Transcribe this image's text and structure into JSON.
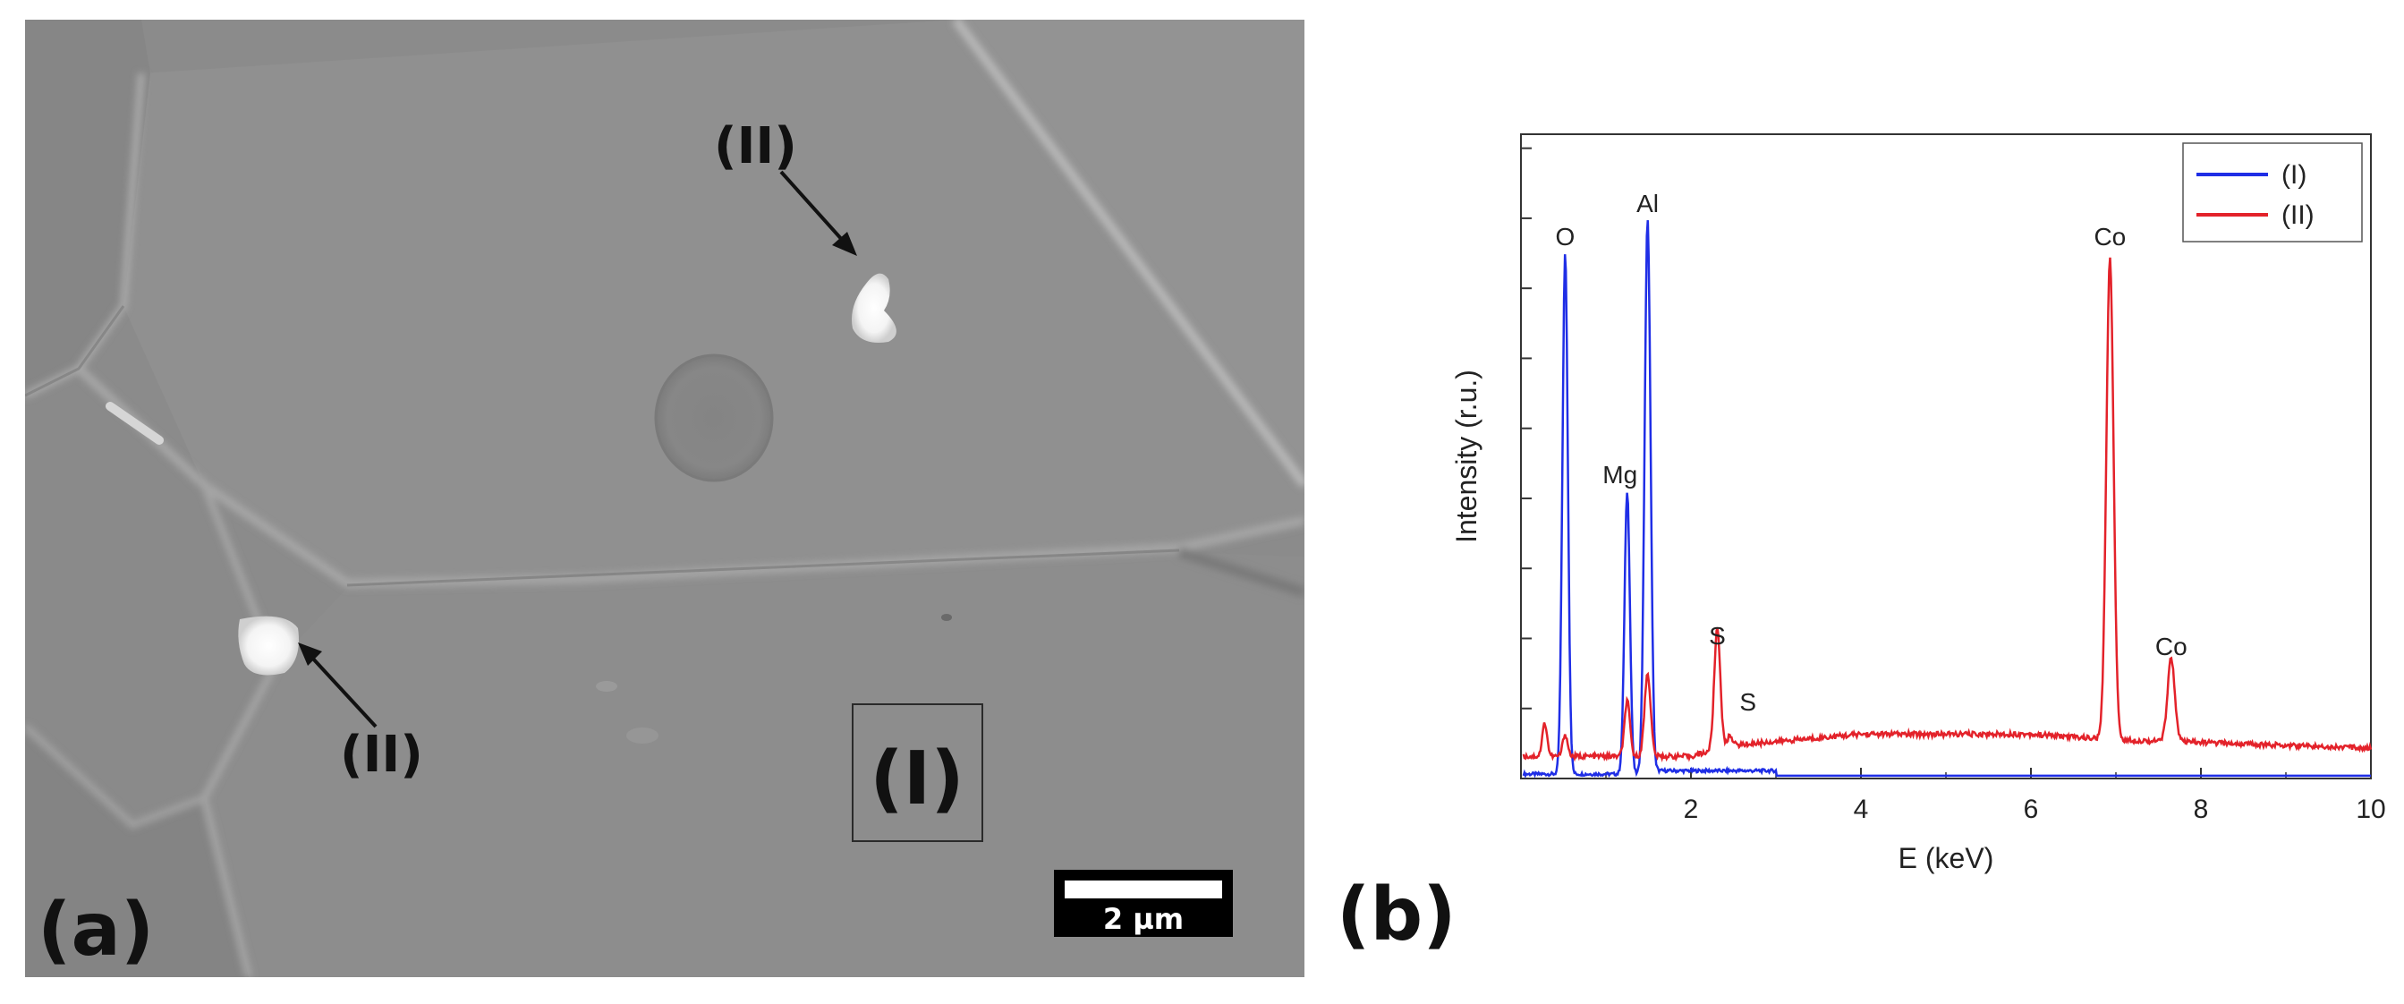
{
  "figure": {
    "panel_a": {
      "label": "(a)",
      "marker_region": "(I)",
      "particle_labels": [
        "(II)",
        "(II)"
      ],
      "scale_bar_text": "2 µm"
    },
    "panel_b": {
      "label": "(b)"
    }
  },
  "colors": {
    "series_I": "#1f2ee6",
    "series_II": "#e3222a"
  },
  "chart_data": {
    "type": "line",
    "title": "",
    "xlabel": "E (keV)",
    "ylabel": "Intensity (r.u.)",
    "xlim": [
      0,
      10
    ],
    "ylim": [
      0,
      100
    ],
    "xticks": [
      2,
      4,
      6,
      8,
      10
    ],
    "yticks_labeled": false,
    "grid": false,
    "legend": {
      "position": "top-right",
      "entries": [
        "(I)",
        "(II)"
      ]
    },
    "series": [
      {
        "name": "(I)",
        "color": "#1f2ee6",
        "peaks": [
          {
            "label": "O",
            "energy": 0.52,
            "height": 94,
            "width": 0.045
          },
          {
            "label": "Mg",
            "energy": 1.25,
            "height": 51,
            "width": 0.045
          },
          {
            "label": "Al",
            "energy": 1.49,
            "height": 100,
            "width": 0.05
          }
        ],
        "baseline": 0.5
      },
      {
        "name": "(II)",
        "color": "#e3222a",
        "peaks": [
          {
            "label": "",
            "energy": 0.28,
            "height": 6,
            "width": 0.04
          },
          {
            "label": "",
            "energy": 0.52,
            "height": 4,
            "width": 0.04
          },
          {
            "label": "",
            "energy": 1.25,
            "height": 10,
            "width": 0.045
          },
          {
            "label": "",
            "energy": 1.49,
            "height": 15,
            "width": 0.05
          },
          {
            "label": "S",
            "energy": 2.31,
            "height": 22,
            "width": 0.05
          },
          {
            "label": "S",
            "energy": 2.46,
            "height": 2,
            "width": 0.04
          },
          {
            "label": "Co",
            "energy": 6.93,
            "height": 87,
            "width": 0.06
          },
          {
            "label": "Co",
            "energy": 7.65,
            "height": 15,
            "width": 0.06
          }
        ],
        "background": [
          {
            "energy": 0.0,
            "value": 4
          },
          {
            "energy": 2.0,
            "value": 4
          },
          {
            "energy": 2.5,
            "value": 6
          },
          {
            "energy": 4.0,
            "value": 8
          },
          {
            "energy": 6.0,
            "value": 8
          },
          {
            "energy": 7.0,
            "value": 7
          },
          {
            "energy": 10.0,
            "value": 5.5
          }
        ]
      }
    ],
    "peak_labels": [
      {
        "text": "O",
        "energy": 0.52,
        "height": 94,
        "series": "(I)"
      },
      {
        "text": "Al",
        "energy": 1.49,
        "height": 100,
        "series": "(I)"
      },
      {
        "text": "Mg",
        "energy": 1.25,
        "height": 51,
        "series": "(I)"
      },
      {
        "text": "S",
        "energy": 2.31,
        "height": 22,
        "series": "(II)"
      },
      {
        "text": "S",
        "energy": 2.46,
        "height": 10,
        "series": "(II)"
      },
      {
        "text": "Co",
        "energy": 6.93,
        "height": 94,
        "series": "(II)"
      },
      {
        "text": "Co",
        "energy": 7.65,
        "height": 20,
        "series": "(II)"
      }
    ]
  }
}
